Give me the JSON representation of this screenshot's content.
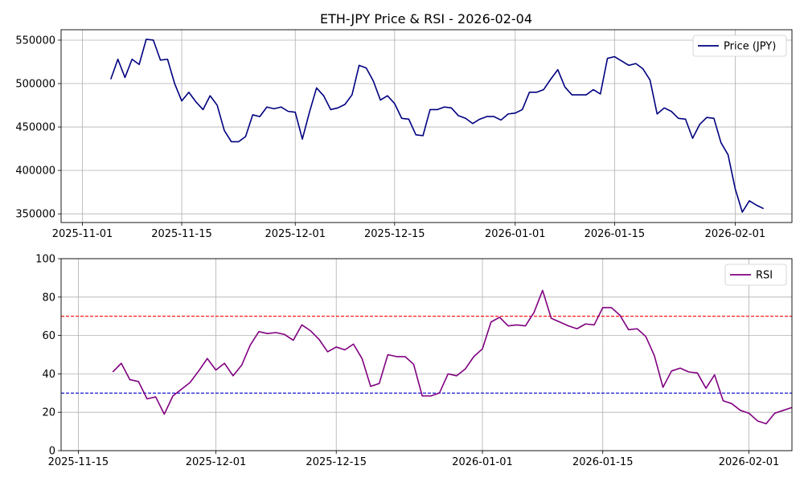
{
  "chart_data": [
    {
      "type": "line",
      "title": "ETH-JPY Price & RSI - 2026-02-04",
      "xlabel": "",
      "ylabel": "",
      "x_start": "2025-11-05",
      "x_ticks": [
        "2025-11-01",
        "2025-11-15",
        "2025-12-01",
        "2025-12-15",
        "2026-01-01",
        "2026-01-15",
        "2026-02-01"
      ],
      "ylim": [
        340000,
        562000
      ],
      "y_ticks": [
        350000,
        400000,
        450000,
        500000,
        550000
      ],
      "grid": true,
      "legend_position": "top-right",
      "series": [
        {
          "name": "Price (JPY)",
          "color": "#000080",
          "values": [
            505000,
            528000,
            507000,
            528000,
            522000,
            551000,
            550000,
            527000,
            528000,
            500000,
            480000,
            490000,
            479000,
            470000,
            486000,
            475000,
            446000,
            433000,
            433000,
            439000,
            464000,
            462000,
            473000,
            471000,
            473000,
            468000,
            467000,
            436000,
            467000,
            495000,
            486000,
            470000,
            472000,
            476000,
            487000,
            521000,
            518000,
            503000,
            481000,
            486000,
            477000,
            460000,
            459000,
            441000,
            440000,
            470000,
            470000,
            473000,
            472000,
            463000,
            460000,
            454000,
            459000,
            462000,
            462000,
            458000,
            465000,
            466000,
            470000,
            490000,
            490000,
            493000,
            505000,
            516000,
            496000,
            487000,
            487000,
            487000,
            493000,
            488000,
            529000,
            531000,
            526000,
            521000,
            523000,
            517000,
            504000,
            465000,
            472000,
            468000,
            460000,
            459000,
            437000,
            453000,
            461000,
            460000,
            432000,
            418000,
            379000,
            352000,
            365000,
            360000,
            356000
          ]
        }
      ]
    },
    {
      "type": "line",
      "title": "",
      "xlabel": "",
      "ylabel": "",
      "x_start": "2025-11-19",
      "x_ticks": [
        "2025-11-15",
        "2025-12-01",
        "2025-12-15",
        "2026-01-01",
        "2026-01-15",
        "2026-02-01"
      ],
      "ylim": [
        0,
        100
      ],
      "y_ticks": [
        0,
        20,
        40,
        60,
        80,
        100
      ],
      "grid": true,
      "legend_position": "top-right",
      "reference_lines": [
        {
          "value": 70,
          "color": "#ff0000"
        },
        {
          "value": 30,
          "color": "#0000cc"
        }
      ],
      "series": [
        {
          "name": "RSI",
          "color": "#800080",
          "values": [
            41,
            45.5,
            37,
            36,
            27,
            28,
            19,
            28.5,
            32,
            35.5,
            41.5,
            48,
            42,
            45.5,
            39,
            44.5,
            55,
            62,
            61,
            61.5,
            60.5,
            57.5,
            65.5,
            62.5,
            58,
            51.5,
            54,
            52.5,
            55.5,
            48,
            33.5,
            35,
            50,
            49,
            49,
            45,
            28.5,
            28.5,
            30,
            40,
            39,
            42.5,
            49,
            53,
            67,
            69.5,
            65,
            65.5,
            65,
            72,
            83.5,
            69,
            67,
            65,
            63.5,
            66,
            65.5,
            74.5,
            74.5,
            70.5,
            63,
            63.5,
            59.5,
            49.5,
            33,
            41.5,
            43,
            41,
            40.5,
            32.5,
            39.5,
            26,
            24.5,
            21,
            19.5,
            15.5,
            14,
            19.5,
            21,
            22.5
          ]
        }
      ]
    }
  ]
}
